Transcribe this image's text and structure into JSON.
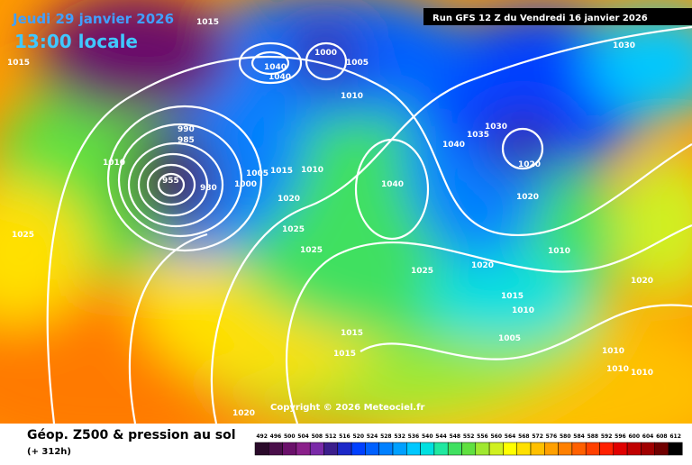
{
  "header": {
    "date": "Jeudi 29 janvier 2026",
    "time": "13:00 locale",
    "run": "Run GFS 12 Z du Vendredi 16 janvier 2026"
  },
  "copyright": "Copyright © 2026 Meteociel.fr",
  "footer": {
    "title": "Géop. Z500 & pression au sol",
    "lead": "(+ 312h)"
  },
  "pressure_labels": [
    "1015",
    "1015",
    "1040",
    "1040",
    "1000",
    "1005",
    "1010",
    "990",
    "985",
    "1010",
    "955",
    "980",
    "1005",
    "1000",
    "1015",
    "1010",
    "1020",
    "1025",
    "1025",
    "1025",
    "1040",
    "1040",
    "1035",
    "1030",
    "1030",
    "1020",
    "1020",
    "1010",
    "1020",
    "1025",
    "1015",
    "1010",
    "1005",
    "1015",
    "1015",
    "1020",
    "1010",
    "1010",
    "1010",
    "1020"
  ],
  "colorbar": {
    "values": [
      492,
      496,
      500,
      504,
      508,
      512,
      516,
      520,
      524,
      528,
      532,
      536,
      540,
      544,
      548,
      552,
      556,
      560,
      564,
      568,
      572,
      576,
      580,
      584,
      588,
      592,
      596,
      600,
      604,
      608,
      612
    ],
    "colors": [
      "#2a0a2a",
      "#4a0f4a",
      "#6a106a",
      "#8a208a",
      "#7a2aa8",
      "#3c1e8c",
      "#1c28c8",
      "#0040ff",
      "#0060ff",
      "#0080ff",
      "#00a0ff",
      "#00c8ff",
      "#00e0e0",
      "#20e8a0",
      "#40e060",
      "#60e040",
      "#a0e830",
      "#d0f020",
      "#ffff00",
      "#ffe000",
      "#ffc000",
      "#ffa000",
      "#ff8000",
      "#ff6000",
      "#ff4000",
      "#ff2000",
      "#e00000",
      "#c00000",
      "#a00000",
      "#700000",
      "#000000"
    ]
  }
}
